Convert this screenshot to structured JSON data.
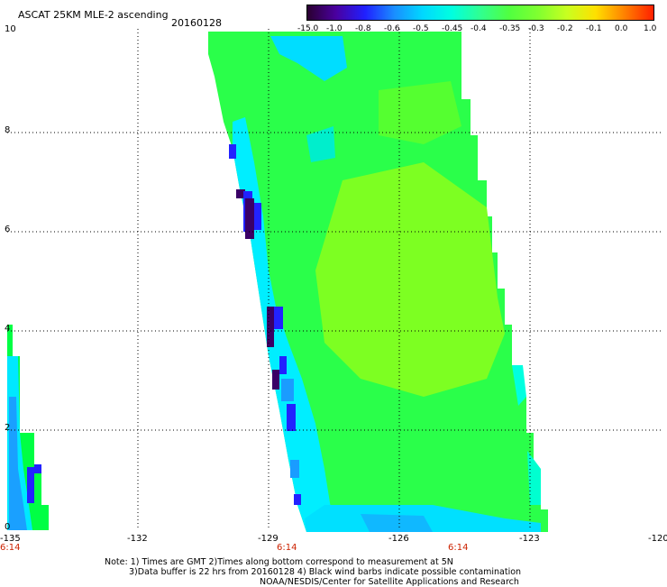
{
  "header": {
    "title": "ASCAT 25KM MLE-2 ascending",
    "date": "20160128"
  },
  "colorbar": {
    "labels": [
      "-15.0",
      "-1.0",
      "-0.8",
      "-0.6",
      "-0.5",
      "-0.45",
      "-0.4",
      "-0.35",
      "-0.3",
      "-0.2",
      "-0.1",
      "0.0",
      "1.0"
    ],
    "colors": [
      "#2a0030",
      "#4a00a0",
      "#2020ff",
      "#1a8cff",
      "#00d8ff",
      "#00ffe0",
      "#30ff90",
      "#50ff40",
      "#80ff30",
      "#c8ff20",
      "#ffe000",
      "#ff8000",
      "#ff2000"
    ]
  },
  "axes": {
    "y_labels": [
      "10",
      "8",
      "6",
      "4",
      "2",
      "0"
    ],
    "x_labels": [
      "-135",
      "-132",
      "-129",
      "-126",
      "-123",
      "-120"
    ],
    "time_labels": [
      "6:14",
      "6:14",
      "6:14"
    ]
  },
  "map": {
    "description_colors": {
      "dark": "#3a0066",
      "blue": "#2222ff",
      "lightblue": "#1a9cff",
      "cyan": "#00eeff",
      "green": "#2aff4a",
      "lime": "#80ff20"
    }
  },
  "footer": {
    "line1": "Note: 1) Times are GMT 2)Times along bottom correspond to measurement at 5N",
    "line2": "3)Data buffer is 22 hrs from 20160128 4) Black wind barbs indicate possible contamination",
    "line3": "NOAA/NESDIS/Center for Satellite Applications and Research"
  }
}
